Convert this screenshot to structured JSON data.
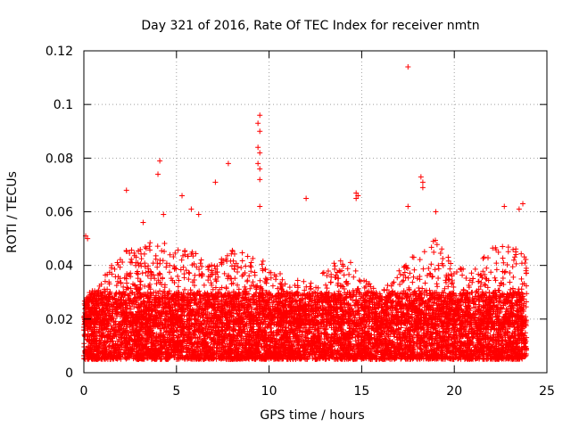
{
  "chart_data": {
    "type": "scatter",
    "title": "Day 321 of 2016, Rate Of TEC Index for receiver nmtn",
    "xlabel": "GPS time / hours",
    "ylabel": "ROTI / TECUs",
    "xlim": [
      0,
      25
    ],
    "ylim": [
      0,
      0.12
    ],
    "x_ticks": [
      "0",
      "5",
      "10",
      "15",
      "20",
      "25"
    ],
    "y_ticks": [
      "0",
      "0.02",
      "0.04",
      "0.06",
      "0.08",
      "0.1",
      "0.12"
    ],
    "grid": true,
    "marker": "plus",
    "series_color": "#ff0000",
    "notable_points": [
      {
        "x": 17.5,
        "y": 0.114
      },
      {
        "x": 9.5,
        "y": 0.096
      },
      {
        "x": 9.4,
        "y": 0.093
      },
      {
        "x": 9.5,
        "y": 0.09
      },
      {
        "x": 9.4,
        "y": 0.084
      },
      {
        "x": 9.5,
        "y": 0.082
      },
      {
        "x": 9.4,
        "y": 0.078
      },
      {
        "x": 9.5,
        "y": 0.076
      },
      {
        "x": 9.5,
        "y": 0.072
      },
      {
        "x": 4.1,
        "y": 0.079
      },
      {
        "x": 4.0,
        "y": 0.074
      },
      {
        "x": 7.8,
        "y": 0.078
      },
      {
        "x": 7.1,
        "y": 0.071
      },
      {
        "x": 18.2,
        "y": 0.073
      },
      {
        "x": 18.3,
        "y": 0.071
      },
      {
        "x": 18.3,
        "y": 0.069
      },
      {
        "x": 2.3,
        "y": 0.068
      },
      {
        "x": 14.7,
        "y": 0.067
      },
      {
        "x": 14.8,
        "y": 0.066
      },
      {
        "x": 14.7,
        "y": 0.065
      },
      {
        "x": 5.3,
        "y": 0.066
      },
      {
        "x": 12.0,
        "y": 0.065
      },
      {
        "x": 23.7,
        "y": 0.063
      },
      {
        "x": 22.7,
        "y": 0.062
      },
      {
        "x": 17.5,
        "y": 0.062
      },
      {
        "x": 9.5,
        "y": 0.062
      },
      {
        "x": 5.8,
        "y": 0.061
      },
      {
        "x": 23.5,
        "y": 0.061
      },
      {
        "x": 19.0,
        "y": 0.06
      },
      {
        "x": 3.2,
        "y": 0.056
      },
      {
        "x": 6.2,
        "y": 0.059
      },
      {
        "x": 4.3,
        "y": 0.059
      },
      {
        "x": 0.1,
        "y": 0.051
      },
      {
        "x": 0.2,
        "y": 0.05
      }
    ],
    "bulk": {
      "x_range": [
        0.0,
        23.9
      ],
      "point_count": 9000,
      "typical_range": [
        0.005,
        0.03
      ],
      "min_value": 0.003,
      "envelope": [
        {
          "x": 0,
          "y": 0.027
        },
        {
          "x": 1,
          "y": 0.035
        },
        {
          "x": 2,
          "y": 0.045
        },
        {
          "x": 3,
          "y": 0.047
        },
        {
          "x": 4,
          "y": 0.05
        },
        {
          "x": 5,
          "y": 0.048
        },
        {
          "x": 6,
          "y": 0.045
        },
        {
          "x": 7,
          "y": 0.04
        },
        {
          "x": 8,
          "y": 0.046
        },
        {
          "x": 9,
          "y": 0.045
        },
        {
          "x": 10,
          "y": 0.04
        },
        {
          "x": 11,
          "y": 0.035
        },
        {
          "x": 12,
          "y": 0.034
        },
        {
          "x": 13,
          "y": 0.04
        },
        {
          "x": 14,
          "y": 0.045
        },
        {
          "x": 15,
          "y": 0.036
        },
        {
          "x": 16,
          "y": 0.03
        },
        {
          "x": 17,
          "y": 0.038
        },
        {
          "x": 18,
          "y": 0.045
        },
        {
          "x": 19,
          "y": 0.05
        },
        {
          "x": 20,
          "y": 0.04
        },
        {
          "x": 21,
          "y": 0.038
        },
        {
          "x": 22,
          "y": 0.048
        },
        {
          "x": 23,
          "y": 0.047
        },
        {
          "x": 23.9,
          "y": 0.045
        }
      ]
    }
  }
}
